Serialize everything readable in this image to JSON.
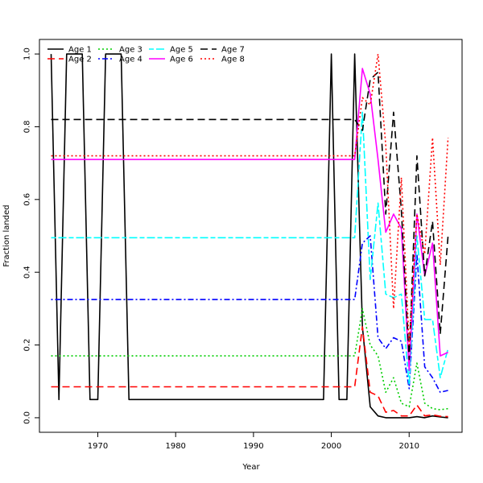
{
  "chart_data": {
    "type": "line",
    "title": "",
    "xlabel": "Year",
    "ylabel": "Fraction landed",
    "xlim": [
      1962.5,
      2016.8
    ],
    "ylim": [
      -0.04,
      1.04
    ],
    "x_ticks": [
      1970,
      1980,
      1990,
      2000,
      2010
    ],
    "y_ticks": [
      0.0,
      0.2,
      0.4,
      0.6,
      0.8,
      1.0
    ],
    "y_tick_labels": [
      "0.0",
      "0.2",
      "0.4",
      "0.6",
      "0.8",
      "1.0"
    ],
    "grid": false,
    "legend_position": "top-left",
    "x": [
      1964,
      1965,
      1966,
      1967,
      1968,
      1969,
      1970,
      1971,
      1972,
      1973,
      1974,
      1975,
      1976,
      1977,
      1978,
      1979,
      1980,
      1981,
      1982,
      1983,
      1984,
      1985,
      1986,
      1987,
      1988,
      1989,
      1990,
      1991,
      1992,
      1993,
      1994,
      1995,
      1996,
      1997,
      1998,
      1999,
      2000,
      2001,
      2002,
      2003,
      2004,
      2005,
      2006,
      2007,
      2008,
      2009,
      2010,
      2011,
      2012,
      2013,
      2014,
      2015
    ],
    "series": [
      {
        "name": "Age 1",
        "color": "#000000",
        "dash": "solid",
        "values": [
          1.0,
          0.05,
          1.0,
          1.0,
          1.0,
          0.05,
          0.05,
          1.0,
          1.0,
          1.0,
          0.05,
          0.05,
          0.05,
          0.05,
          0.05,
          0.05,
          0.05,
          0.05,
          0.05,
          0.05,
          0.05,
          0.05,
          0.05,
          0.05,
          0.05,
          0.05,
          0.05,
          0.05,
          0.05,
          0.05,
          0.05,
          0.05,
          0.05,
          0.05,
          0.05,
          0.05,
          1.0,
          0.05,
          0.05,
          1.0,
          0.25,
          0.03,
          0.005,
          0.0,
          0.0,
          0.0,
          0.0,
          0.003,
          0.0,
          0.005,
          0.002,
          0.0
        ]
      },
      {
        "name": "Age 2",
        "color": "#ff0000",
        "dash": "longdash",
        "values": [
          0.085,
          0.085,
          0.085,
          0.085,
          0.085,
          0.085,
          0.085,
          0.085,
          0.085,
          0.085,
          0.085,
          0.085,
          0.085,
          0.085,
          0.085,
          0.085,
          0.085,
          0.085,
          0.085,
          0.085,
          0.085,
          0.085,
          0.085,
          0.085,
          0.085,
          0.085,
          0.085,
          0.085,
          0.085,
          0.085,
          0.085,
          0.085,
          0.085,
          0.085,
          0.085,
          0.085,
          0.085,
          0.085,
          0.085,
          0.085,
          0.25,
          0.07,
          0.06,
          0.015,
          0.02,
          0.005,
          0.005,
          0.035,
          0.005,
          0.008,
          0.004,
          0.003
        ]
      },
      {
        "name": "Age 3",
        "color": "#00cd00",
        "dash": "dotted",
        "values": [
          0.17,
          0.17,
          0.17,
          0.17,
          0.17,
          0.17,
          0.17,
          0.17,
          0.17,
          0.17,
          0.17,
          0.17,
          0.17,
          0.17,
          0.17,
          0.17,
          0.17,
          0.17,
          0.17,
          0.17,
          0.17,
          0.17,
          0.17,
          0.17,
          0.17,
          0.17,
          0.17,
          0.17,
          0.17,
          0.17,
          0.17,
          0.17,
          0.17,
          0.17,
          0.17,
          0.17,
          0.17,
          0.17,
          0.17,
          0.17,
          0.3,
          0.2,
          0.17,
          0.07,
          0.11,
          0.04,
          0.03,
          0.15,
          0.04,
          0.025,
          0.022,
          0.025
        ]
      },
      {
        "name": "Age 4",
        "color": "#0000ff",
        "dash": "dotdash",
        "values": [
          0.325,
          0.325,
          0.325,
          0.325,
          0.325,
          0.325,
          0.325,
          0.325,
          0.325,
          0.325,
          0.325,
          0.325,
          0.325,
          0.325,
          0.325,
          0.325,
          0.325,
          0.325,
          0.325,
          0.325,
          0.325,
          0.325,
          0.325,
          0.325,
          0.325,
          0.325,
          0.325,
          0.325,
          0.325,
          0.325,
          0.325,
          0.325,
          0.325,
          0.325,
          0.325,
          0.325,
          0.325,
          0.325,
          0.325,
          0.325,
          0.48,
          0.5,
          0.22,
          0.19,
          0.22,
          0.21,
          0.08,
          0.45,
          0.14,
          0.11,
          0.07,
          0.075
        ]
      },
      {
        "name": "Age 5",
        "color": "#00ffff",
        "dash": "twodash",
        "values": [
          0.495,
          0.495,
          0.495,
          0.495,
          0.495,
          0.495,
          0.495,
          0.495,
          0.495,
          0.495,
          0.495,
          0.495,
          0.495,
          0.495,
          0.495,
          0.495,
          0.495,
          0.495,
          0.495,
          0.495,
          0.495,
          0.495,
          0.495,
          0.495,
          0.495,
          0.495,
          0.495,
          0.495,
          0.495,
          0.495,
          0.495,
          0.495,
          0.495,
          0.495,
          0.495,
          0.495,
          0.495,
          0.495,
          0.495,
          0.495,
          0.84,
          0.38,
          0.59,
          0.34,
          0.33,
          0.34,
          0.09,
          0.5,
          0.27,
          0.27,
          0.11,
          0.19
        ]
      },
      {
        "name": "Age 6",
        "color": "#ff00ff",
        "dash": "solid",
        "values": [
          0.71,
          0.71,
          0.71,
          0.71,
          0.71,
          0.71,
          0.71,
          0.71,
          0.71,
          0.71,
          0.71,
          0.71,
          0.71,
          0.71,
          0.71,
          0.71,
          0.71,
          0.71,
          0.71,
          0.71,
          0.71,
          0.71,
          0.71,
          0.71,
          0.71,
          0.71,
          0.71,
          0.71,
          0.71,
          0.71,
          0.71,
          0.71,
          0.71,
          0.71,
          0.71,
          0.71,
          0.71,
          0.71,
          0.71,
          0.71,
          0.96,
          0.89,
          0.71,
          0.51,
          0.56,
          0.52,
          0.13,
          0.56,
          0.39,
          0.48,
          0.17,
          0.18
        ]
      },
      {
        "name": "Age 7",
        "color": "#000000",
        "dash": "longdash",
        "values": [
          0.82,
          0.82,
          0.82,
          0.82,
          0.82,
          0.82,
          0.82,
          0.82,
          0.82,
          0.82,
          0.82,
          0.82,
          0.82,
          0.82,
          0.82,
          0.82,
          0.82,
          0.82,
          0.82,
          0.82,
          0.82,
          0.82,
          0.82,
          0.82,
          0.82,
          0.82,
          0.82,
          0.82,
          0.82,
          0.82,
          0.82,
          0.82,
          0.82,
          0.82,
          0.82,
          0.82,
          0.82,
          0.82,
          0.82,
          0.82,
          0.79,
          0.93,
          0.95,
          0.56,
          0.84,
          0.57,
          0.16,
          0.72,
          0.39,
          0.54,
          0.23,
          0.5
        ]
      },
      {
        "name": "Age 8",
        "color": "#ff0000",
        "dash": "dotted",
        "values": [
          0.72,
          0.72,
          0.72,
          0.72,
          0.72,
          0.72,
          0.72,
          0.72,
          0.72,
          0.72,
          0.72,
          0.72,
          0.72,
          0.72,
          0.72,
          0.72,
          0.72,
          0.72,
          0.72,
          0.72,
          0.72,
          0.72,
          0.72,
          0.72,
          0.72,
          0.72,
          0.72,
          0.72,
          0.72,
          0.72,
          0.72,
          0.72,
          0.72,
          0.72,
          0.72,
          0.72,
          0.72,
          0.72,
          0.72,
          0.72,
          0.88,
          0.86,
          1.0,
          0.75,
          0.3,
          0.66,
          0.2,
          0.56,
          0.45,
          0.77,
          0.42,
          0.77
        ]
      }
    ]
  }
}
